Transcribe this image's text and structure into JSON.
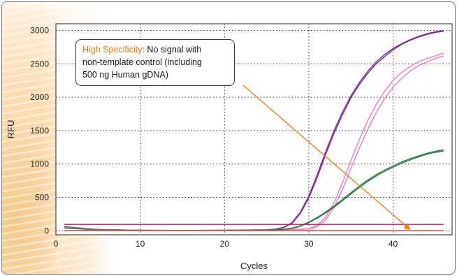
{
  "callout": {
    "highlight": "High Specificity:",
    "text_line1": " No signal with",
    "text_line2": "non-template control (including",
    "text_line3": "500 ng Human gDNA)",
    "highlight_color": "#f07a0c"
  },
  "chart_data": {
    "type": "line",
    "title": "",
    "xlabel": "Cycles",
    "ylabel": "RFU",
    "xlim": [
      0,
      47
    ],
    "ylim": [
      -60,
      3100
    ],
    "x_ticks": [
      0,
      10,
      20,
      30,
      40
    ],
    "y_ticks": [
      0,
      500,
      1000,
      1500,
      2000,
      2500,
      3000
    ],
    "grid": true,
    "grid_style": "dotted",
    "legend": "none",
    "series": [
      {
        "color": "#7b2d8e",
        "x": [
          1,
          5,
          10,
          15,
          20,
          25,
          26,
          27,
          28,
          29,
          30,
          31,
          32,
          33,
          34,
          35,
          36,
          37,
          38,
          39,
          40,
          41,
          42,
          43,
          44,
          45,
          46
        ],
        "y": [
          60,
          20,
          8,
          6,
          8,
          15,
          25,
          50,
          120,
          280,
          520,
          840,
          1180,
          1500,
          1780,
          2020,
          2220,
          2390,
          2530,
          2640,
          2730,
          2800,
          2860,
          2910,
          2950,
          2980,
          3000
        ]
      },
      {
        "color": "#7b2d8e",
        "x": [
          1,
          5,
          10,
          15,
          20,
          25,
          26,
          27,
          28,
          29,
          30,
          31,
          32,
          33,
          34,
          35,
          36,
          37,
          38,
          39,
          40,
          41,
          42,
          43,
          44,
          45,
          46
        ],
        "y": [
          55,
          18,
          7,
          5,
          7,
          13,
          22,
          45,
          110,
          260,
          490,
          800,
          1140,
          1460,
          1740,
          1990,
          2190,
          2360,
          2500,
          2610,
          2710,
          2790,
          2850,
          2900,
          2940,
          2970,
          2990
        ]
      },
      {
        "color": "#f07ac0",
        "x": [
          1,
          5,
          10,
          15,
          20,
          25,
          30,
          31,
          32,
          33,
          34,
          35,
          36,
          37,
          38,
          39,
          40,
          41,
          42,
          43,
          44,
          45,
          46
        ],
        "y": [
          50,
          15,
          6,
          5,
          6,
          10,
          30,
          80,
          200,
          420,
          720,
          1050,
          1370,
          1650,
          1890,
          2090,
          2250,
          2370,
          2460,
          2530,
          2580,
          2620,
          2660
        ]
      },
      {
        "color": "#f07ac0",
        "x": [
          1,
          5,
          10,
          15,
          20,
          25,
          30,
          31,
          32,
          33,
          34,
          35,
          36,
          37,
          38,
          39,
          40,
          41,
          42,
          43,
          44,
          45,
          46
        ],
        "y": [
          48,
          14,
          6,
          5,
          6,
          10,
          25,
          60,
          160,
          350,
          620,
          930,
          1240,
          1520,
          1770,
          1980,
          2150,
          2280,
          2390,
          2470,
          2530,
          2580,
          2620
        ]
      },
      {
        "color": "#2e7d4a",
        "x": [
          1,
          5,
          10,
          15,
          20,
          25,
          27,
          28,
          29,
          30,
          31,
          32,
          33,
          34,
          35,
          36,
          37,
          38,
          39,
          40,
          41,
          42,
          43,
          44,
          45,
          46
        ],
        "y": [
          45,
          12,
          5,
          4,
          5,
          10,
          22,
          40,
          75,
          130,
          200,
          280,
          370,
          470,
          570,
          670,
          760,
          840,
          910,
          970,
          1030,
          1080,
          1120,
          1160,
          1190,
          1210
        ]
      },
      {
        "color": "#2e7d4a",
        "x": [
          1,
          5,
          10,
          15,
          20,
          25,
          27,
          28,
          29,
          30,
          31,
          32,
          33,
          34,
          35,
          36,
          37,
          38,
          39,
          40,
          41,
          42,
          43,
          44,
          45,
          46
        ],
        "y": [
          42,
          11,
          5,
          4,
          5,
          9,
          20,
          36,
          68,
          120,
          188,
          265,
          352,
          450,
          550,
          648,
          740,
          820,
          890,
          952,
          1010,
          1060,
          1105,
          1145,
          1175,
          1195
        ]
      },
      {
        "color": "#c2185b",
        "x": [
          1,
          46
        ],
        "y": [
          95,
          95
        ]
      },
      {
        "color": "#8a2a48",
        "x": [
          1,
          10,
          20,
          30,
          40,
          46
        ],
        "y": [
          5,
          3,
          3,
          3,
          3,
          4
        ]
      },
      {
        "color": "#e0705a",
        "x": [
          1,
          10,
          20,
          30,
          40,
          46
        ],
        "y": [
          2,
          1,
          1,
          1,
          1,
          2
        ]
      }
    ],
    "annotation_arrow": {
      "color": "#f07a0c",
      "from": [
        22.2,
        2180
      ],
      "to": [
        42,
        0
      ]
    }
  }
}
